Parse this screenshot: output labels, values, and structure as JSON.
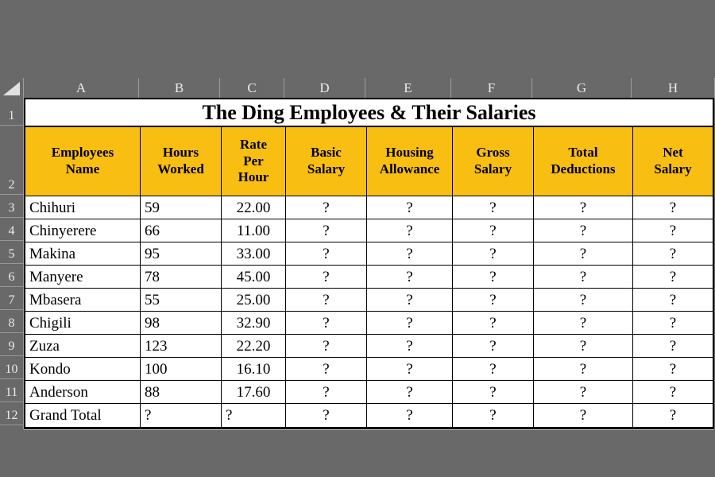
{
  "colors": {
    "background_gray": "#696969",
    "header_fill_orange": "#F8BE12",
    "grid_border": "#000000",
    "heading_strip_text": "#E9EBEE",
    "title_background": "#FFFFFF",
    "text": "#000000"
  },
  "spreadsheet": {
    "title": "The Ding Employees & Their Salaries",
    "column_letters": [
      "A",
      "B",
      "C",
      "D",
      "E",
      "F",
      "G",
      "H"
    ],
    "row_numbers": [
      "1",
      "2",
      "3",
      "4",
      "5",
      "6",
      "7",
      "8",
      "9",
      "10",
      "11",
      "12"
    ],
    "header_row": [
      "Employees\nName",
      "Hours\nWorked",
      "Rate\nPer\nHour",
      "Basic\nSalary",
      "Housing\nAllowance",
      "Gross\nSalary",
      "Total\nDeductions",
      "Net\nSalary"
    ],
    "rows": [
      [
        "Chihuri",
        "59",
        "22.00",
        "?",
        "?",
        "?",
        "?",
        "?"
      ],
      [
        "Chinyerere",
        "66",
        "11.00",
        "?",
        "?",
        "?",
        "?",
        "?"
      ],
      [
        "Makina",
        "95",
        "33.00",
        "?",
        "?",
        "?",
        "?",
        "?"
      ],
      [
        "Manyere",
        "78",
        "45.00",
        "?",
        "?",
        "?",
        "?",
        "?"
      ],
      [
        "Mbasera",
        "55",
        "25.00",
        "?",
        "?",
        "?",
        "?",
        "?"
      ],
      [
        "Chigili",
        "98",
        "32.90",
        "?",
        "?",
        "?",
        "?",
        "?"
      ],
      [
        "Zuza",
        "123",
        "22.20",
        "?",
        "?",
        "?",
        "?",
        "?"
      ],
      [
        "Kondo",
        "100",
        "16.10",
        "?",
        "?",
        "?",
        "?",
        "?"
      ],
      [
        "Anderson",
        "88",
        "17.60",
        "?",
        "?",
        "?",
        "?",
        "?"
      ],
      [
        "Grand Total",
        "?",
        "?",
        "?",
        "?",
        "?",
        "?",
        "?"
      ]
    ]
  }
}
